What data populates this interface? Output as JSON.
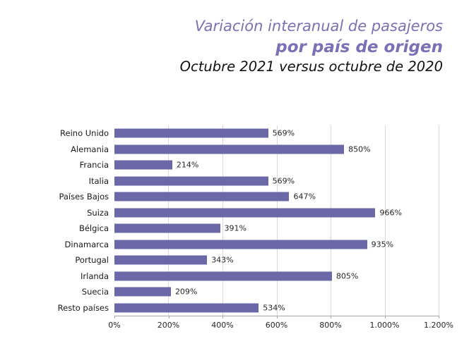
{
  "title": {
    "line1": "Variación interanual de pasajeros",
    "line2": "por país de origen",
    "line3": "Octubre 2021 versus octubre de 2020"
  },
  "colors": {
    "bar": "#6A68A7",
    "title": "#7A70B5",
    "grid": "#D9D9D9",
    "axis": "#A6A6A6"
  },
  "chart_data": {
    "type": "bar",
    "orientation": "horizontal",
    "title": "Variación interanual de pasajeros por país de origen",
    "subtitle": "Octubre 2021 versus octubre de 2020",
    "categories": [
      "Reino Unido",
      "Alemania",
      "Francia",
      "Italia",
      "Países Bajos",
      "Suiza",
      "Bélgica",
      "Dinamarca",
      "Portugal",
      "Irlanda",
      "Suecia",
      "Resto países"
    ],
    "values": [
      569,
      850,
      214,
      569,
      647,
      966,
      391,
      935,
      343,
      805,
      209,
      534
    ],
    "value_labels": [
      "569%",
      "850%",
      "214%",
      "569%",
      "647%",
      "966%",
      "391%",
      "935%",
      "343%",
      "805%",
      "209%",
      "534%"
    ],
    "xlabel": "",
    "ylabel": "",
    "xlim": [
      0,
      1200
    ],
    "x_ticks": [
      0,
      200,
      400,
      600,
      800,
      1000,
      1200
    ],
    "x_tick_labels": [
      "0%",
      "200%",
      "400%",
      "600%",
      "800%",
      "1.000%",
      "1.200%"
    ],
    "grid": "vertical-gridlines-on",
    "legend": "none",
    "bar_color": "#6A68A7"
  }
}
